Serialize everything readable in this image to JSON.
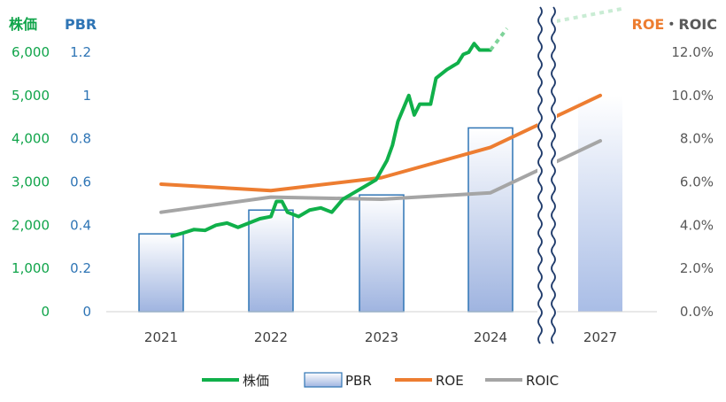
{
  "chart_data": {
    "type": "bar",
    "categories": [
      "2021",
      "2022",
      "2023",
      "2024",
      "2027"
    ],
    "axis_headers": {
      "price": "株価",
      "pbr": "PBR",
      "roe_part": "ROE",
      "separator": "・",
      "roic_part": "ROIC"
    },
    "axes": {
      "price": {
        "min": 0,
        "max": 6000,
        "ticks": [
          "0",
          "1,000",
          "2,000",
          "3,000",
          "4,000",
          "5,000",
          "6,000"
        ]
      },
      "pbr": {
        "min": 0,
        "max": 1.2,
        "ticks": [
          "0",
          "0.2",
          "0.4",
          "0.6",
          "0.8",
          "1",
          "1.2"
        ]
      },
      "pct": {
        "min": 0,
        "max": 0.12,
        "ticks": [
          "0.0%",
          "2.0%",
          "4.0%",
          "6.0%",
          "8.0%",
          "10.0%",
          "12.0%"
        ]
      }
    },
    "grid": false,
    "legend_position": "bottom",
    "axis_break": {
      "between": [
        "2024",
        "2027"
      ]
    },
    "series": [
      {
        "name": "PBR",
        "type": "bar",
        "axis": "pbr",
        "values": [
          0.36,
          0.47,
          0.54,
          0.85,
          1.0
        ],
        "forecast": [
          false,
          false,
          false,
          false,
          true
        ]
      },
      {
        "name": "ROE",
        "type": "line",
        "axis": "pct",
        "values": [
          0.059,
          0.056,
          0.062,
          0.076,
          0.1
        ]
      },
      {
        "name": "ROIC",
        "type": "line",
        "axis": "pct",
        "values": [
          0.046,
          0.053,
          0.052,
          0.055,
          0.079
        ]
      },
      {
        "name": "株価",
        "type": "line",
        "axis": "price",
        "points": [
          [
            2021.1,
            1750
          ],
          [
            2021.2,
            1820
          ],
          [
            2021.3,
            1900
          ],
          [
            2021.4,
            1880
          ],
          [
            2021.5,
            2000
          ],
          [
            2021.6,
            2050
          ],
          [
            2021.7,
            1950
          ],
          [
            2021.8,
            2050
          ],
          [
            2021.9,
            2150
          ],
          [
            2022.0,
            2200
          ],
          [
            2022.05,
            2550
          ],
          [
            2022.1,
            2550
          ],
          [
            2022.15,
            2300
          ],
          [
            2022.25,
            2200
          ],
          [
            2022.35,
            2350
          ],
          [
            2022.45,
            2400
          ],
          [
            2022.55,
            2300
          ],
          [
            2022.65,
            2600
          ],
          [
            2022.75,
            2750
          ],
          [
            2022.85,
            2900
          ],
          [
            2022.95,
            3050
          ],
          [
            2023.05,
            3500
          ],
          [
            2023.1,
            3850
          ],
          [
            2023.15,
            4400
          ],
          [
            2023.25,
            5000
          ],
          [
            2023.3,
            4550
          ],
          [
            2023.35,
            4800
          ],
          [
            2023.45,
            4800
          ],
          [
            2023.5,
            5400
          ],
          [
            2023.6,
            5600
          ],
          [
            2023.7,
            5750
          ],
          [
            2023.75,
            5950
          ],
          [
            2023.8,
            6000
          ],
          [
            2023.85,
            6200
          ],
          [
            2023.9,
            6050
          ],
          [
            2024.0,
            6050
          ]
        ],
        "forecast_points": [
          [
            2024.0,
            6050
          ],
          [
            2024.45,
            6550
          ]
        ]
      }
    ]
  }
}
